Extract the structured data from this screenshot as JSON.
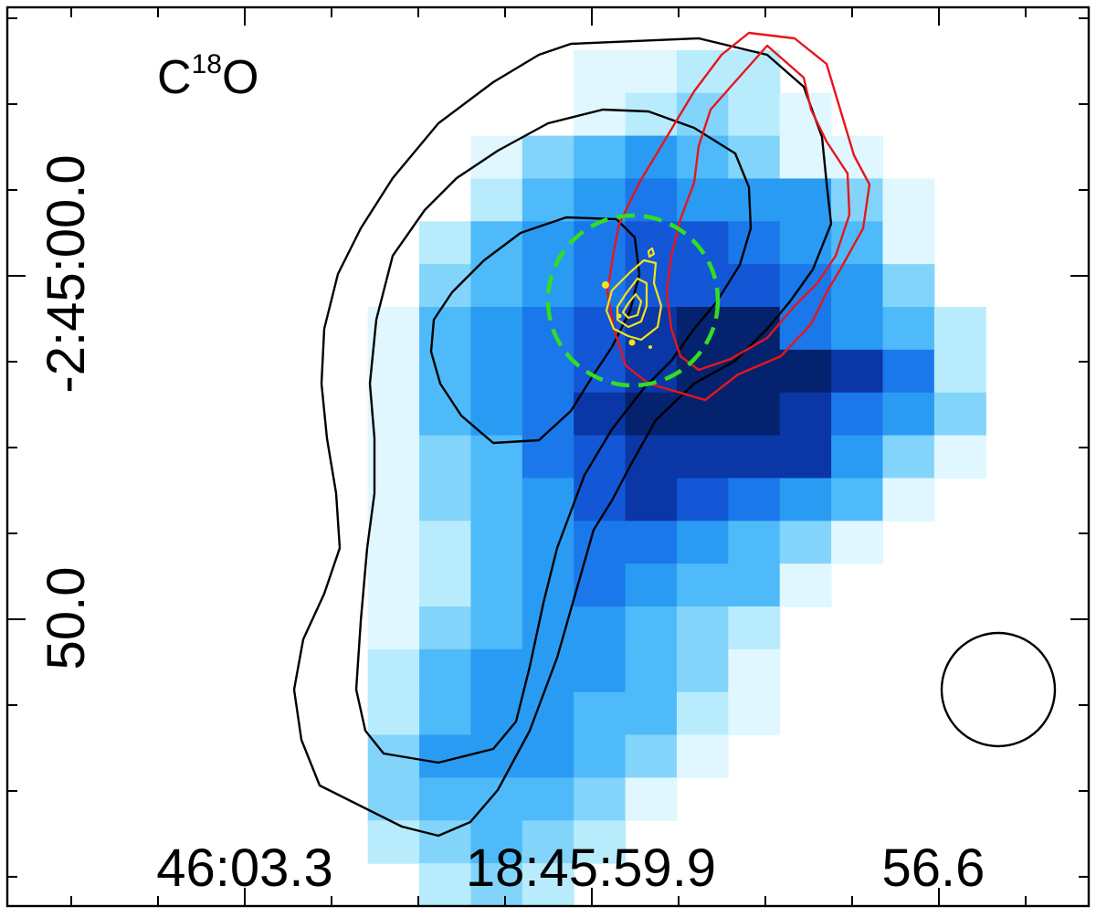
{
  "chart_data": {
    "type": "heatmap",
    "title": "",
    "xlabel": "",
    "ylabel": "",
    "label": {
      "base": "C",
      "superscript": "18",
      "rest": "O"
    },
    "x_tick_labels": [
      "46:03.3",
      "18:45:59.9",
      "56.6"
    ],
    "y_tick_labels": [
      "-2:45:00.0",
      "50.0"
    ],
    "colormap": [
      "#ffffff",
      "#e0f7ff",
      "#b8ecfd",
      "#83d4fb",
      "#4fbaf9",
      "#2a9bf3",
      "#1a78ea",
      "#1357d6",
      "#0a36a6",
      "#04226e"
    ],
    "grid": false,
    "legend": "none",
    "colors": {
      "contour_intensity": "#000000",
      "contour_red": "#e8151b",
      "contour_yellow": "#f5e21a",
      "circle_dashed": "#33dd22",
      "beam": "#000000"
    }
  },
  "image": {
    "pixel_rows": [
      "000000000000000000000",
      "000000000001122000000",
      "000000000001232100000",
      "000000000134543110000",
      "000000000245655531000",
      "000000002456776541000",
      "000000003456777653000",
      "000000014567899654200",
      "000000014567899986200",
      "000000014568999865300",
      "000000013467888853100",
      "000000013457876541000",
      "000000012456654310000",
      "000000012456544100000",
      "000000013455432000000",
      "000000024555431000000",
      "000000024554421000000",
      "000000035554310000000",
      "000000034443100000000",
      "000000023432000000000",
      "000000002320000000000"
    ]
  }
}
